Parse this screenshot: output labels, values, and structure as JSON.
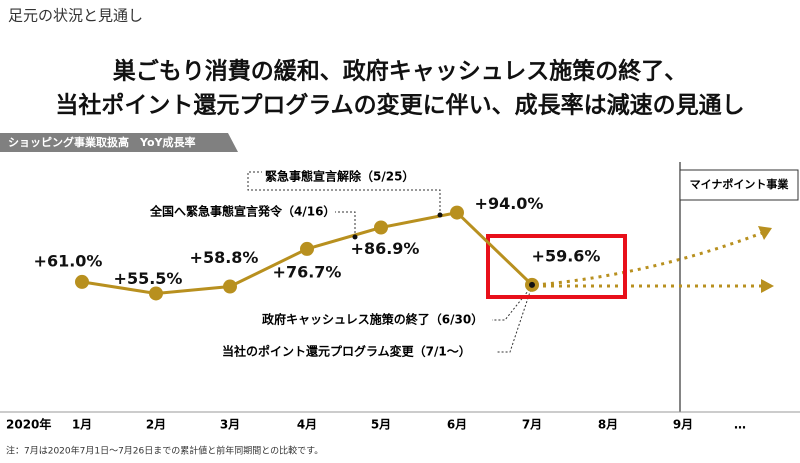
{
  "header": "足元の状況と見通し",
  "chart_data": {
    "type": "line",
    "title": [
      "巣ごもり消費の緩和、政府キャッシュレス施策の終了、",
      "当社ポイント還元プログラムの変更に伴い、成長率は減速の見通し"
    ],
    "subtitle": "ショッピング事業取扱高　YoY成長率",
    "year_label": "2020年",
    "categories": [
      "1月",
      "2月",
      "3月",
      "4月",
      "5月",
      "6月",
      "7月",
      "8月",
      "9月",
      "…"
    ],
    "values": [
      61.0,
      55.5,
      58.8,
      76.7,
      86.9,
      94.0,
      59.6,
      null,
      null,
      null
    ],
    "value_labels": [
      "+61.0%",
      "+55.5%",
      "+58.8%",
      "+76.7%",
      "+86.9%",
      "+94.0%",
      "+59.6%",
      null,
      null,
      null
    ],
    "color": "#b8901f",
    "annotations": [
      "緊急事態宣言解除（5/25）",
      "全国へ緊急事態宣言発令（4/16）",
      "政府キャッシュレス施策の終了（6/30）",
      "当社のポイント還元プログラム変更（7/1～）"
    ],
    "region_label": "マイナポイント事業",
    "footnote": "注：7月は2020年7月1日～7月26日までの累計値と前年同期間との比較です。"
  }
}
